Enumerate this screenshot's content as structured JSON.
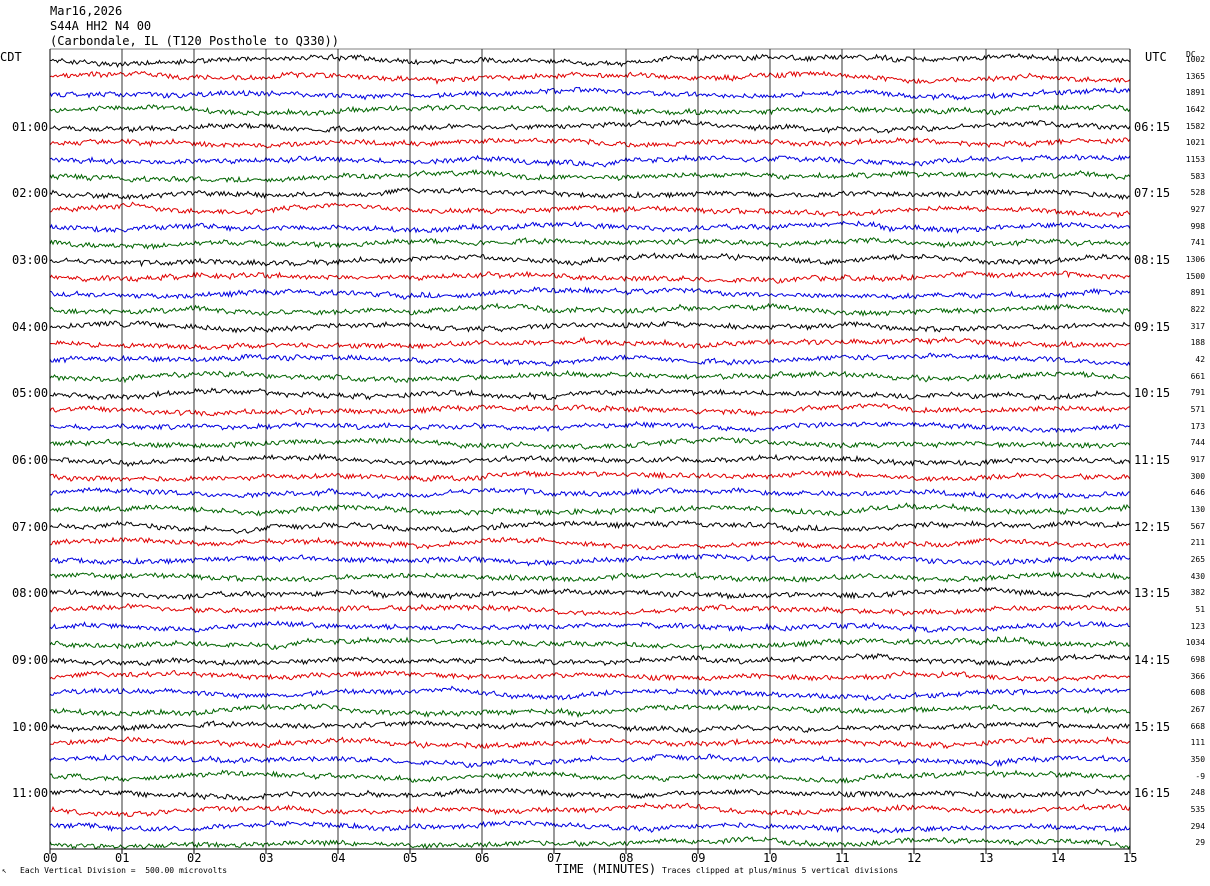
{
  "header": {
    "date": "Mar16,2026",
    "station": "S44A HH2 N4 00",
    "location": "(Carbondale, IL (T120 Posthole to Q330))"
  },
  "left_tz": "CDT",
  "right_tz": "UTC",
  "dc_label": "DC",
  "footer": {
    "scale_note": "Each Vertical Division =  500.00 microvolts",
    "xaxis_title": "TIME (MINUTES)",
    "clip_note": "Traces clipped at plus/minus 5 vertical divisions",
    "corner_mark": "↖"
  },
  "colors": {
    "trace_cycle": [
      "#000000",
      "#e00000",
      "#0000e0",
      "#006400"
    ],
    "gridline": "#000000"
  },
  "chart_data": {
    "type": "line",
    "subtype": "helicorder-seismogram",
    "x_axis": {
      "label": "TIME (MINUTES)",
      "range": [
        0,
        15
      ],
      "ticks": [
        "00",
        "01",
        "02",
        "03",
        "04",
        "05",
        "06",
        "07",
        "08",
        "09",
        "10",
        "11",
        "12",
        "13",
        "14",
        "15"
      ]
    },
    "left_hour_labels": [
      "01:00",
      "02:00",
      "03:00",
      "04:00",
      "05:00",
      "06:00",
      "07:00",
      "08:00",
      "09:00",
      "10:00",
      "11:00"
    ],
    "right_hour_labels": [
      "06:15",
      "07:15",
      "08:15",
      "09:15",
      "10:15",
      "11:15",
      "12:15",
      "13:15",
      "14:15",
      "15:15",
      "16:15"
    ],
    "hour_label_every_n_lines": 4,
    "first_hour_label_line": 4,
    "line_count": 48,
    "line_color_order": [
      "black",
      "red",
      "blue",
      "green"
    ],
    "dc_offsets": [
      1002,
      1365,
      1891,
      1642,
      1582,
      1021,
      1153,
      583,
      528,
      927,
      998,
      741,
      1306,
      1500,
      891,
      822,
      317,
      188,
      42,
      661,
      791,
      571,
      173,
      744,
      917,
      300,
      646,
      130,
      567,
      211,
      265,
      430,
      382,
      51,
      123,
      1034,
      698,
      366,
      608,
      267,
      668,
      111,
      350,
      -9,
      248,
      535,
      294,
      29
    ]
  }
}
